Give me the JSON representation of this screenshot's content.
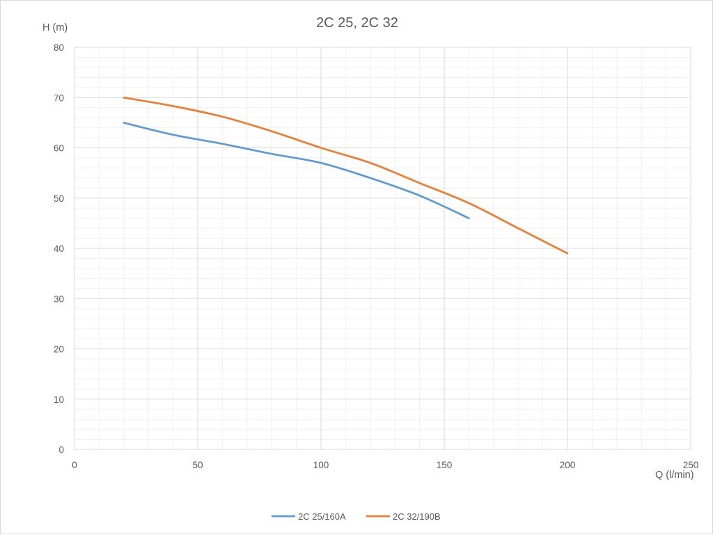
{
  "chart_data": {
    "type": "line",
    "title": "2C 25, 2C 32",
    "xlabel": "Q (l/min)",
    "ylabel": "H (m)",
    "xlim": [
      0,
      250
    ],
    "ylim": [
      0,
      80
    ],
    "x_major_ticks": [
      0,
      50,
      100,
      150,
      200,
      250
    ],
    "y_major_ticks": [
      0,
      10,
      20,
      30,
      40,
      50,
      60,
      70,
      80
    ],
    "x_minor_step": 10,
    "y_minor_step": 2,
    "grid": "major and minor",
    "legend_position": "bottom",
    "series": [
      {
        "name": "2C 25/160A",
        "color": "#5b9bd5",
        "x": [
          20,
          40,
          60,
          80,
          100,
          120,
          140,
          160
        ],
        "y": [
          65,
          62.6,
          60.8,
          58.8,
          57,
          54,
          50.5,
          46
        ]
      },
      {
        "name": "2C 32/190B",
        "color": "#ed7d31",
        "x": [
          20,
          40,
          60,
          80,
          100,
          120,
          140,
          160,
          180,
          200
        ],
        "y": [
          70,
          68.3,
          66.2,
          63.3,
          60,
          57,
          53,
          49,
          44,
          39
        ]
      }
    ]
  }
}
